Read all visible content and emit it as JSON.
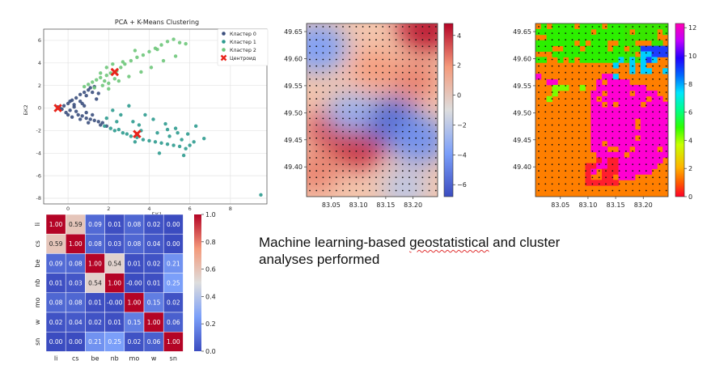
{
  "caption": {
    "before": "Machine learning-based ",
    "squiggle": "geostatistical",
    "after": " and cluster analyses performed"
  },
  "chart_data": [
    {
      "type": "scatter",
      "title": "PCA + K-Means Clustering",
      "xlabel": "БК1",
      "ylabel": "БК2",
      "xlim": [
        -1.2,
        9.8
      ],
      "ylim": [
        -8.5,
        7.0
      ],
      "xticks": [
        0,
        2,
        4,
        6,
        8
      ],
      "yticks": [
        -8,
        -6,
        -4,
        -2,
        0,
        2,
        4,
        6
      ],
      "grid": true,
      "legend_position": "top-right",
      "series": [
        {
          "name": "Кластер 0",
          "color": "#3b4f7d",
          "points": [
            [
              -0.4,
              0.0
            ],
            [
              -0.2,
              0.2
            ],
            [
              0.0,
              0.4
            ],
            [
              0.2,
              0.7
            ],
            [
              0.4,
              0.9
            ],
            [
              0.6,
              1.2
            ],
            [
              0.8,
              1.4
            ],
            [
              1.0,
              1.6
            ],
            [
              1.1,
              1.8
            ],
            [
              1.3,
              1.9
            ],
            [
              1.2,
              1.4
            ],
            [
              0.9,
              1.1
            ],
            [
              0.6,
              0.6
            ],
            [
              0.3,
              0.3
            ],
            [
              0.1,
              -0.2
            ],
            [
              -0.1,
              -0.4
            ],
            [
              0.5,
              -0.6
            ],
            [
              0.7,
              -0.7
            ],
            [
              0.9,
              -0.9
            ],
            [
              1.1,
              -1.0
            ],
            [
              1.3,
              -1.1
            ],
            [
              1.5,
              -1.2
            ],
            [
              1.7,
              -1.3
            ],
            [
              0.3,
              0.1
            ],
            [
              0.8,
              0.2
            ],
            [
              1.4,
              0.8
            ],
            [
              -0.3,
              -0.1
            ],
            [
              0.2,
              -0.8
            ],
            [
              0.6,
              -1.0
            ],
            [
              1.0,
              -1.3
            ],
            [
              1.6,
              -1.5
            ],
            [
              1.9,
              -1.6
            ],
            [
              0.4,
              -0.3
            ],
            [
              0.1,
              0.6
            ],
            [
              1.2,
              -0.6
            ],
            [
              0.7,
              0.4
            ],
            [
              1.5,
              1.3
            ],
            [
              0.9,
              -0.4
            ],
            [
              -0.5,
              0.1
            ],
            [
              0.0,
              -0.6
            ]
          ]
        },
        {
          "name": "Кластер 1",
          "color": "#2e9b8f",
          "points": [
            [
              1.8,
              -1.6
            ],
            [
              2.1,
              -1.8
            ],
            [
              2.3,
              -2.0
            ],
            [
              2.5,
              -1.9
            ],
            [
              2.7,
              -2.2
            ],
            [
              2.9,
              -2.3
            ],
            [
              3.1,
              -2.5
            ],
            [
              3.4,
              -2.6
            ],
            [
              3.7,
              -2.8
            ],
            [
              4.0,
              -2.9
            ],
            [
              4.3,
              -3.0
            ],
            [
              4.6,
              -3.1
            ],
            [
              4.9,
              -3.2
            ],
            [
              5.2,
              -3.3
            ],
            [
              5.5,
              -3.4
            ],
            [
              5.8,
              -3.6
            ],
            [
              6.0,
              -3.3
            ],
            [
              5.6,
              -2.8
            ],
            [
              5.0,
              -2.5
            ],
            [
              4.4,
              -2.2
            ],
            [
              3.6,
              -2.0
            ],
            [
              3.2,
              -1.2
            ],
            [
              3.5,
              -1.5
            ],
            [
              2.6,
              -0.6
            ],
            [
              2.2,
              -0.2
            ],
            [
              3.0,
              0.2
            ],
            [
              3.8,
              -0.6
            ],
            [
              4.2,
              -1.0
            ],
            [
              4.8,
              -1.4
            ],
            [
              5.3,
              -1.8
            ],
            [
              5.9,
              -2.3
            ],
            [
              6.3,
              -1.6
            ],
            [
              6.7,
              -2.7
            ],
            [
              6.2,
              -3.0
            ],
            [
              5.7,
              -4.2
            ],
            [
              4.5,
              -4.0
            ],
            [
              3.3,
              -3.0
            ],
            [
              2.4,
              -1.2
            ],
            [
              1.9,
              -0.9
            ],
            [
              9.5,
              -7.7
            ],
            [
              4.9,
              -1.9
            ],
            [
              5.4,
              -2.2
            ]
          ]
        },
        {
          "name": "Кластер 2",
          "color": "#6ec77a",
          "points": [
            [
              0.8,
              1.9
            ],
            [
              1.0,
              2.1
            ],
            [
              1.2,
              2.3
            ],
            [
              1.4,
              2.5
            ],
            [
              1.6,
              2.7
            ],
            [
              1.9,
              2.9
            ],
            [
              2.1,
              3.1
            ],
            [
              2.4,
              3.3
            ],
            [
              2.6,
              3.6
            ],
            [
              2.8,
              3.9
            ],
            [
              3.1,
              4.2
            ],
            [
              3.4,
              4.5
            ],
            [
              3.7,
              4.7
            ],
            [
              4.0,
              5.0
            ],
            [
              4.3,
              5.3
            ],
            [
              4.6,
              5.6
            ],
            [
              4.9,
              5.9
            ],
            [
              5.2,
              6.1
            ],
            [
              5.5,
              5.8
            ],
            [
              5.8,
              5.7
            ],
            [
              5.3,
              4.6
            ],
            [
              4.7,
              4.2
            ],
            [
              4.1,
              3.6
            ],
            [
              3.6,
              3.2
            ],
            [
              3.0,
              2.8
            ],
            [
              2.5,
              2.4
            ],
            [
              2.0,
              2.2
            ],
            [
              1.7,
              2.0
            ],
            [
              1.3,
              1.8
            ],
            [
              1.6,
              3.1
            ],
            [
              1.9,
              3.6
            ],
            [
              2.2,
              3.9
            ],
            [
              2.7,
              4.1
            ],
            [
              2.3,
              2.6
            ],
            [
              1.8,
              2.4
            ],
            [
              3.3,
              5.1
            ],
            [
              4.4,
              5.2
            ],
            [
              2.0,
              1.7
            ]
          ]
        },
        {
          "name": "Центроид",
          "color": "#e8241b",
          "marker": "x",
          "points": [
            [
              -0.5,
              0.0
            ],
            [
              2.3,
              3.2
            ],
            [
              3.4,
              -2.3
            ]
          ]
        }
      ]
    },
    {
      "type": "heatmap",
      "title": "",
      "xlim": [
        83.005,
        83.245
      ],
      "ylim": [
        49.345,
        49.665
      ],
      "xticks": [
        "83.05",
        "83.10",
        "83.15",
        "83.20"
      ],
      "yticks": [
        "49.40",
        "49.45",
        "49.50",
        "49.55",
        "49.60",
        "49.65"
      ],
      "colormap": "coolwarm",
      "colorbar_range": [
        -6.8,
        4.8
      ],
      "colorbar_ticks": [
        "4",
        "2",
        "0",
        "−2",
        "−4",
        "−6"
      ],
      "sample_points": "black dot grid, 20 × 26",
      "field_features": [
        {
          "x": 83.045,
          "y": 49.47,
          "value": 3.5
        },
        {
          "x": 83.1,
          "y": 49.44,
          "value": 4.0
        },
        {
          "x": 83.02,
          "y": 49.39,
          "value": 2.5
        },
        {
          "x": 83.13,
          "y": 49.58,
          "value": 2.0
        },
        {
          "x": 83.225,
          "y": 49.655,
          "value": 4.5
        },
        {
          "x": 83.205,
          "y": 49.56,
          "value": 2.5
        },
        {
          "x": 83.16,
          "y": 49.485,
          "value": -6.0
        },
        {
          "x": 83.21,
          "y": 49.45,
          "value": -4.5
        },
        {
          "x": 83.085,
          "y": 49.5,
          "value": -3.0
        },
        {
          "x": 83.025,
          "y": 49.62,
          "value": -4.0
        },
        {
          "x": 83.185,
          "y": 49.36,
          "value": -1.5
        }
      ]
    },
    {
      "type": "heatmap",
      "title": "",
      "xlim": [
        83.005,
        83.245
      ],
      "ylim": [
        49.345,
        49.665
      ],
      "xticks": [
        "83.05",
        "83.10",
        "83.15",
        "83.20"
      ],
      "yticks": [
        "49.40",
        "49.45",
        "49.50",
        "49.55",
        "49.60",
        "49.65"
      ],
      "colormap": "gist_rainbow (discrete classes)",
      "colorbar_range": [
        0,
        12.3
      ],
      "colorbar_ticks": [
        "12",
        "10",
        "8",
        "6",
        "4",
        "2",
        "0"
      ],
      "sample_points": "black dot grid, 20 × 26",
      "zones": [
        {
          "class": 1,
          "x": 83.09,
          "y": 49.45,
          "description": "dominant orange zone"
        },
        {
          "class": 11,
          "x": 83.18,
          "y": 49.44,
          "description": "magenta zone"
        },
        {
          "class": 0,
          "x": 83.15,
          "y": 49.395,
          "description": "red zone"
        },
        {
          "class": 5,
          "x": 83.1,
          "y": 49.63,
          "description": "green zone"
        },
        {
          "class": 8,
          "x": 83.21,
          "y": 49.6,
          "description": "blue zone"
        }
      ]
    },
    {
      "type": "heatmap",
      "title": "",
      "labels": [
        "li",
        "cs",
        "be",
        "nb",
        "mo",
        "w",
        "sn"
      ],
      "colormap": "coolwarm",
      "colorbar_range": [
        0.0,
        1.0
      ],
      "colorbar_ticks": [
        "1.0",
        "0.8",
        "0.6",
        "0.4",
        "0.2",
        "0.0"
      ],
      "matrix": [
        [
          1.0,
          0.59,
          0.09,
          0.01,
          0.08,
          0.02,
          0.0
        ],
        [
          0.59,
          1.0,
          0.08,
          0.03,
          0.08,
          0.04,
          0.0
        ],
        [
          0.09,
          0.08,
          1.0,
          0.54,
          0.01,
          0.02,
          0.21
        ],
        [
          0.01,
          0.03,
          0.54,
          1.0,
          -0.0,
          0.01,
          0.25
        ],
        [
          0.08,
          0.08,
          0.01,
          -0.0,
          1.0,
          0.15,
          0.02
        ],
        [
          0.02,
          0.04,
          0.02,
          0.01,
          0.15,
          1.0,
          0.06
        ],
        [
          0.0,
          0.0,
          0.21,
          0.25,
          0.02,
          0.06,
          1.0
        ]
      ],
      "cell_text": [
        [
          "1.00",
          "0.59",
          "0.09",
          "0.01",
          "0.08",
          "0.02",
          "0.00"
        ],
        [
          "0.59",
          "1.00",
          "0.08",
          "0.03",
          "0.08",
          "0.04",
          "0.00"
        ],
        [
          "0.09",
          "0.08",
          "1.00",
          "0.54",
          "0.01",
          "0.02",
          "0.21"
        ],
        [
          "0.01",
          "0.03",
          "0.54",
          "1.00",
          "-0.00",
          "0.01",
          "0.25"
        ],
        [
          "0.08",
          "0.08",
          "0.01",
          "-0.00",
          "1.00",
          "0.15",
          "0.02"
        ],
        [
          "0.02",
          "0.04",
          "0.02",
          "0.01",
          "0.15",
          "1.00",
          "0.06"
        ],
        [
          "0.00",
          "0.00",
          "0.21",
          "0.25",
          "0.02",
          "0.06",
          "1.00"
        ]
      ]
    }
  ]
}
